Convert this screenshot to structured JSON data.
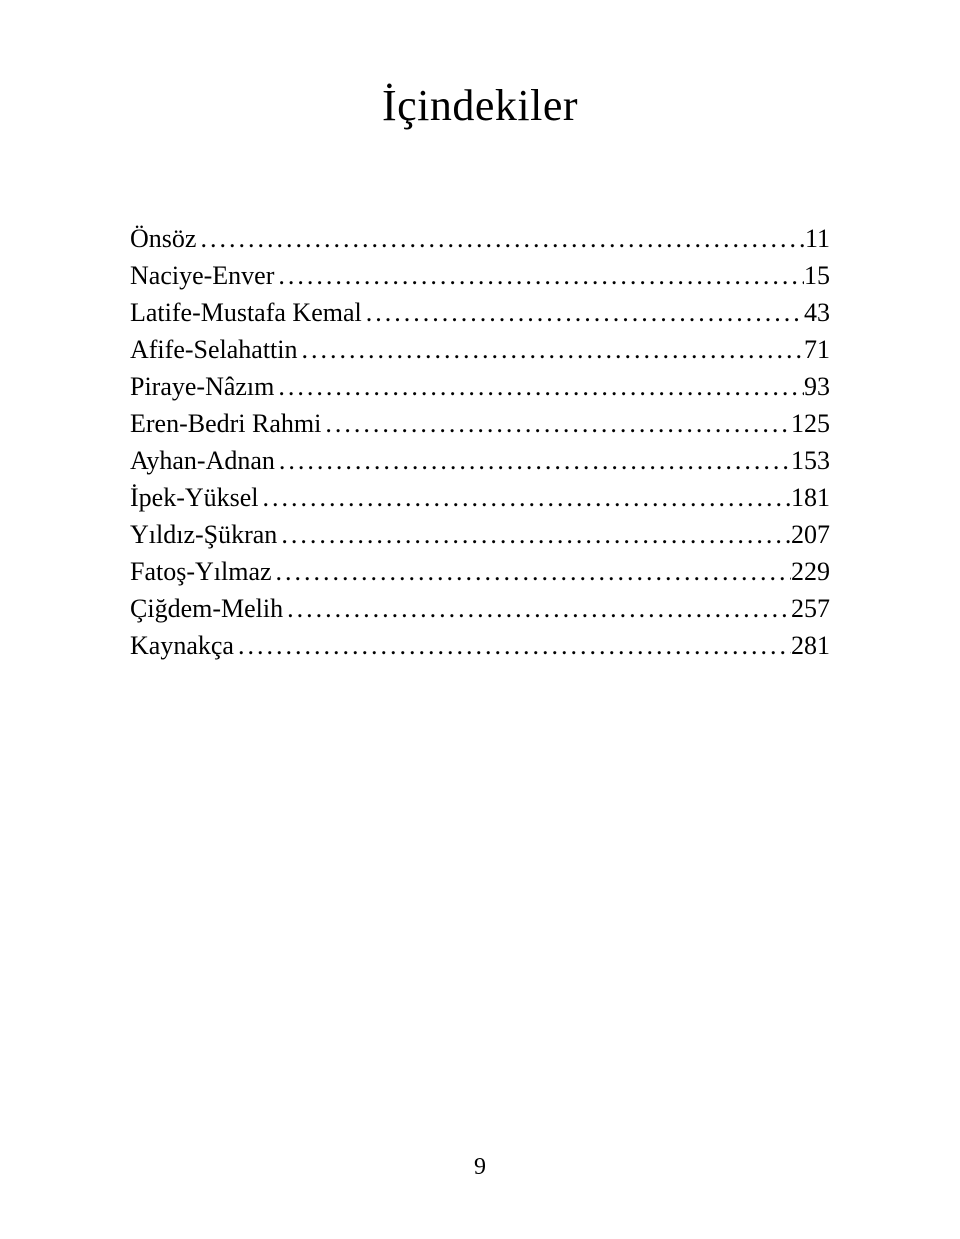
{
  "title": "İçindekiler",
  "entries": [
    {
      "label": "Önsöz",
      "page": "11"
    },
    {
      "label": "Naciye-Enver",
      "page": "15"
    },
    {
      "label": "Latife-Mustafa Kemal",
      "page": "43"
    },
    {
      "label": "Afife-Selahattin",
      "page": "71"
    },
    {
      "label": "Piraye-Nâzım",
      "page": "93"
    },
    {
      "label": "Eren-Bedri Rahmi",
      "page": "125"
    },
    {
      "label": "Ayhan-Adnan",
      "page": "153"
    },
    {
      "label": "İpek-Yüksel",
      "page": "181"
    },
    {
      "label": "Yıldız-Şükran",
      "page": "207"
    },
    {
      "label": "Fatoş-Yılmaz",
      "page": "229"
    },
    {
      "label": "Çiğdem-Melih",
      "page": "257"
    },
    {
      "label": "Kaynakça",
      "page": "281"
    }
  ],
  "pageNumber": "9",
  "style": {
    "background_color": "#ffffff",
    "text_color": "#000000",
    "title_fontsize": 44,
    "entry_fontsize": 26,
    "page_number_fontsize": 24,
    "font_family": "Georgia, Times New Roman, serif"
  }
}
